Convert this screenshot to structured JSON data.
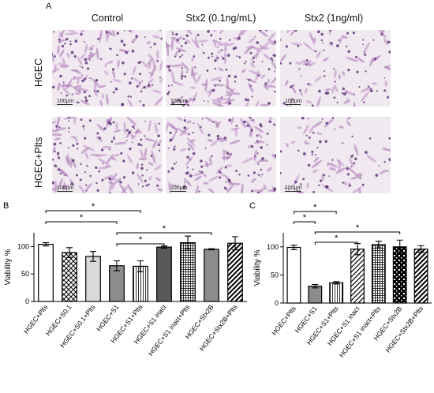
{
  "panel_a": {
    "letter": "A",
    "columns": [
      "Control",
      "Stx2 (0.1ng/mL)",
      "Stx2 (1ng/ml)"
    ],
    "rows": [
      "HGEC",
      "HGEC+Plts"
    ],
    "scale_label": "100μm"
  },
  "chart_data": [
    {
      "type": "bar",
      "panel": "B",
      "ylabel": "Viability %",
      "ylim": [
        0,
        125
      ],
      "yticks": [
        0,
        50,
        100
      ],
      "categories": [
        "HGEC+Plts",
        "HGEC+S0.1",
        "HGEC+S0.1+Plts",
        "HGEC+S1",
        "HGEC+S1+Plts",
        "HGEC+S1 inact",
        "HGEC+S1 inact+Plts",
        "HGEC+Stx2B",
        "HGEC+Stx2B+Plts"
      ],
      "values": [
        104,
        89,
        82,
        65,
        64,
        99,
        107,
        95,
        106
      ],
      "errors": [
        3,
        9,
        9,
        9,
        10,
        2,
        12,
        1,
        12
      ],
      "significance": [
        {
          "from": 0,
          "to": 4,
          "label": "*"
        },
        {
          "from": 0,
          "to": 3,
          "label": "*"
        },
        {
          "from": 3,
          "to": 7,
          "label": "*"
        },
        {
          "from": 3,
          "to": 5,
          "label": "*"
        }
      ]
    },
    {
      "type": "bar",
      "panel": "C",
      "ylabel": "Viability %",
      "ylim": [
        0,
        125
      ],
      "yticks": [
        0,
        50,
        100
      ],
      "categories": [
        "HGEC+Plts",
        "HGEC+S1",
        "HGEC+S1+Plts",
        "HGEC+S1 inact",
        "HGEC+S1 inact+Plts",
        "HGEC+Stx2B",
        "HGEC+Stx2B+Plts"
      ],
      "values": [
        99,
        30,
        36,
        96,
        104,
        100,
        96
      ],
      "errors": [
        4,
        3,
        2,
        10,
        6,
        12,
        6
      ],
      "significance": [
        {
          "from": 0,
          "to": 2,
          "label": "*"
        },
        {
          "from": 0,
          "to": 1,
          "label": "*"
        },
        {
          "from": 1,
          "to": 5,
          "label": "*"
        },
        {
          "from": 1,
          "to": 3,
          "label": "*"
        }
      ]
    }
  ],
  "colors": {
    "bar_stroke": "#000000",
    "gray_light": "#d9d9d9",
    "gray_mid": "#8c8c8c",
    "gray_dark": "#595959",
    "stain": "#9a5aa6"
  }
}
